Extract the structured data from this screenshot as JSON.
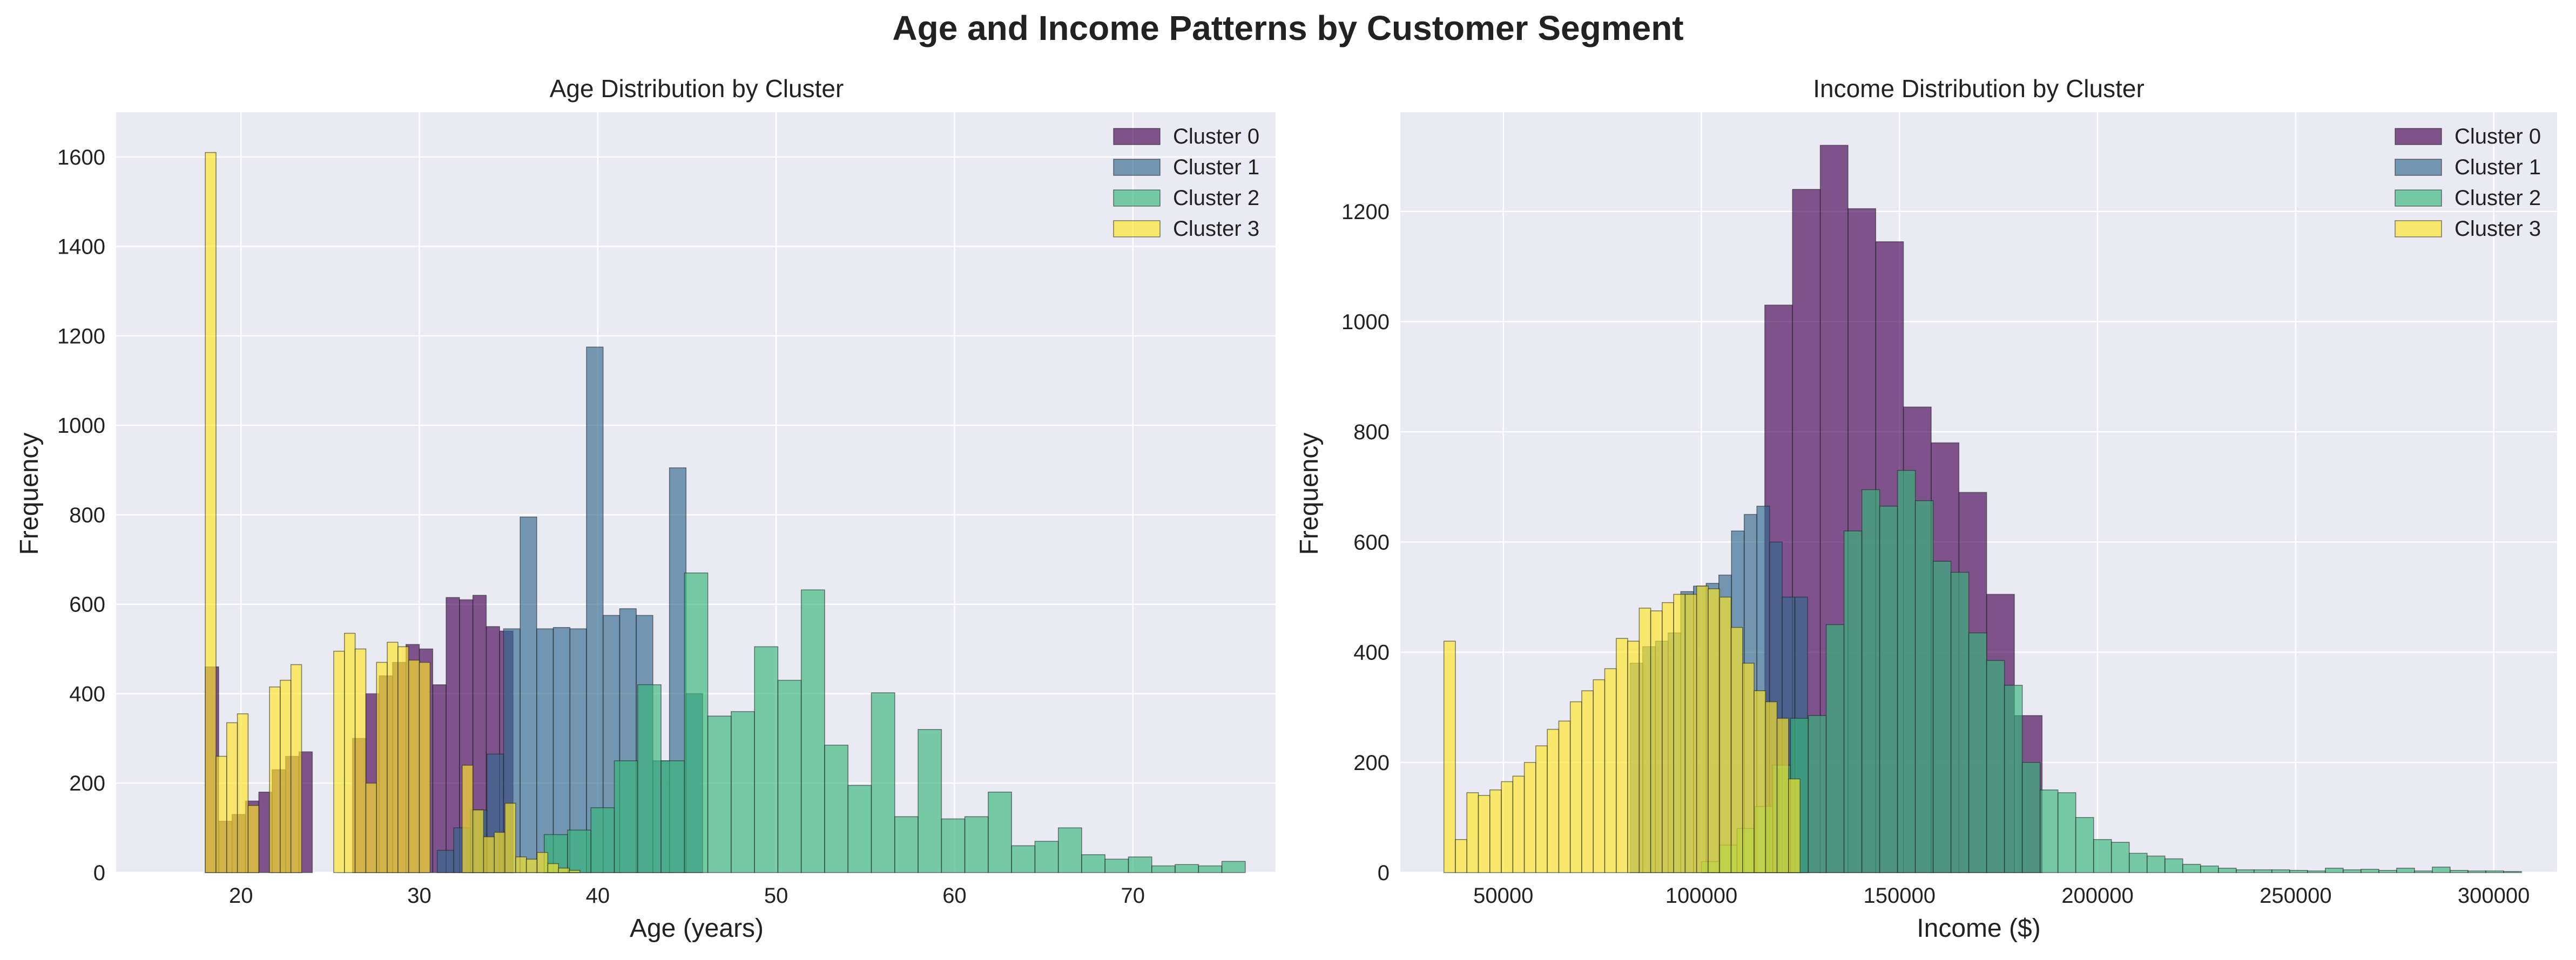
{
  "figure_title": "Age and Income Patterns by Customer Segment",
  "colors": {
    "background": "#eaeaf2",
    "grid": "#ffffff",
    "Cluster 0": "#440154",
    "Cluster 1": "#31688e",
    "Cluster 2": "#35b779",
    "Cluster 3": "#fde725"
  },
  "chart_data": [
    {
      "type": "bar",
      "title": "Age Distribution by Cluster",
      "xlabel": "Age (years)",
      "ylabel": "Frequency",
      "xlim": [
        13,
        78
      ],
      "ylim": [
        0,
        1700
      ],
      "xticks": [
        20,
        30,
        40,
        50,
        60,
        70
      ],
      "yticks": [
        0,
        200,
        400,
        600,
        800,
        1000,
        1200,
        1400,
        1600
      ],
      "grid": true,
      "legend": "top-right",
      "series": [
        {
          "name": "Cluster 0",
          "bin_width": 0.75,
          "x": [
            18,
            18.75,
            19.5,
            20.25,
            21,
            21.75,
            22.5,
            23.25,
            24,
            24.75,
            25.5,
            26.25,
            27,
            27.75,
            28.5,
            29.25,
            30,
            30.75,
            31.5,
            32.25,
            33,
            33.75,
            34.5
          ],
          "values": [
            460,
            115,
            130,
            160,
            180,
            230,
            260,
            270,
            0,
            0,
            0,
            300,
            400,
            440,
            470,
            510,
            500,
            420,
            615,
            610,
            620,
            550,
            540
          ]
        },
        {
          "name": "Cluster 1",
          "bin_width": 0.93,
          "x": [
            31,
            31.93,
            32.86,
            33.79,
            34.72,
            35.65,
            36.58,
            37.51,
            38.44,
            39.37,
            40.3,
            41.23,
            42.16,
            43.09,
            44.02,
            44.95
          ],
          "values": [
            50,
            100,
            140,
            265,
            545,
            795,
            545,
            548,
            545,
            1175,
            575,
            590,
            575,
            250,
            905,
            400
          ]
        },
        {
          "name": "Cluster 2",
          "bin_width": 1.31,
          "x": [
            37,
            38.31,
            39.62,
            40.93,
            42.24,
            43.55,
            44.86,
            46.17,
            47.48,
            48.79,
            50.1,
            51.41,
            52.72,
            54.03,
            55.34,
            56.65,
            57.96,
            59.27,
            60.58,
            61.89,
            63.2,
            64.51,
            65.82,
            67.13,
            68.44,
            69.75,
            71.06,
            72.37,
            73.68,
            74.99
          ],
          "values": [
            85,
            95,
            145,
            250,
            420,
            250,
            670,
            350,
            360,
            505,
            430,
            632,
            285,
            195,
            402,
            125,
            320,
            120,
            125,
            180,
            60,
            70,
            100,
            40,
            30,
            35,
            15,
            18,
            15,
            25
          ]
        },
        {
          "name": "Cluster 3",
          "bin_width": 0.6,
          "x": [
            18,
            18.6,
            19.2,
            19.8,
            20.4,
            21,
            21.6,
            22.2,
            22.8,
            23.4,
            24,
            24.6,
            25.2,
            25.8,
            26.4,
            27,
            27.6,
            28.2,
            28.8,
            29.4,
            30,
            30.6,
            31.2,
            31.8,
            32.4,
            33,
            33.6,
            34.2,
            34.8,
            35.4,
            36,
            36.6,
            37.2,
            37.8,
            38.4
          ],
          "values": [
            1610,
            260,
            335,
            355,
            150,
            0,
            415,
            430,
            465,
            0,
            0,
            0,
            495,
            535,
            500,
            200,
            470,
            515,
            505,
            475,
            470,
            0,
            0,
            0,
            240,
            140,
            80,
            90,
            155,
            35,
            30,
            45,
            20,
            10,
            5
          ]
        }
      ]
    },
    {
      "type": "bar",
      "title": "Income Distribution by Cluster",
      "xlabel": "Income ($)",
      "ylabel": "Frequency",
      "xlim": [
        24000,
        316000
      ],
      "ylim": [
        0,
        1380
      ],
      "xticks": [
        50000,
        100000,
        150000,
        200000,
        250000,
        300000
      ],
      "yticks": [
        0,
        200,
        400,
        600,
        800,
        1000,
        1200
      ],
      "grid": true,
      "legend": "top-right",
      "series": [
        {
          "name": "Cluster 0",
          "bin_width": 7000,
          "x": [
            116000,
            123000,
            130000,
            137000,
            144000,
            151000,
            158000,
            165000,
            172000,
            179000
          ],
          "values": [
            1030,
            1240,
            1320,
            1205,
            1145,
            845,
            780,
            690,
            505,
            285
          ]
        },
        {
          "name": "Cluster 1",
          "bin_width": 3200,
          "x": [
            82000,
            85200,
            88400,
            91600,
            94800,
            98000,
            101200,
            104400,
            107600,
            110800,
            114000,
            117200,
            120400,
            123600
          ],
          "values": [
            380,
            410,
            420,
            435,
            510,
            520,
            525,
            540,
            620,
            650,
            665,
            600,
            500,
            500
          ]
        },
        {
          "name": "Cluster 2",
          "bin_width": 4500,
          "x": [
            100000,
            104500,
            109000,
            113500,
            118000,
            122500,
            127000,
            131500,
            136000,
            140500,
            145000,
            149500,
            154000,
            158500,
            163000,
            167500,
            172000,
            176500,
            181000,
            185500,
            190000,
            194500,
            199000,
            203500,
            208000,
            212500,
            217000,
            221500,
            226000,
            230500,
            235000,
            239500,
            244000,
            248500,
            253000,
            257500,
            262000,
            266500,
            271000,
            275500,
            280000,
            284500,
            289000,
            293500,
            298000,
            302500
          ],
          "values": [
            20,
            50,
            80,
            120,
            195,
            280,
            285,
            450,
            620,
            695,
            665,
            730,
            675,
            565,
            545,
            435,
            385,
            340,
            200,
            150,
            145,
            100,
            60,
            55,
            35,
            30,
            25,
            15,
            12,
            8,
            5,
            5,
            5,
            4,
            3,
            8,
            5,
            6,
            4,
            8,
            3,
            10,
            4,
            3,
            3,
            2
          ]
        },
        {
          "name": "Cluster 3",
          "bin_width": 2900,
          "x": [
            35000,
            37900,
            40800,
            43700,
            46600,
            49500,
            52400,
            55300,
            58200,
            61100,
            64000,
            66900,
            69800,
            72700,
            75600,
            78500,
            81400,
            84300,
            87200,
            90100,
            93000,
            95900,
            98800,
            101700,
            104600,
            107500,
            110400,
            113300,
            116200,
            119100,
            122000
          ],
          "values": [
            420,
            60,
            145,
            140,
            150,
            165,
            175,
            200,
            230,
            260,
            275,
            310,
            330,
            350,
            370,
            425,
            420,
            480,
            475,
            490,
            505,
            505,
            520,
            515,
            500,
            445,
            380,
            330,
            310,
            280,
            170
          ]
        }
      ]
    }
  ]
}
